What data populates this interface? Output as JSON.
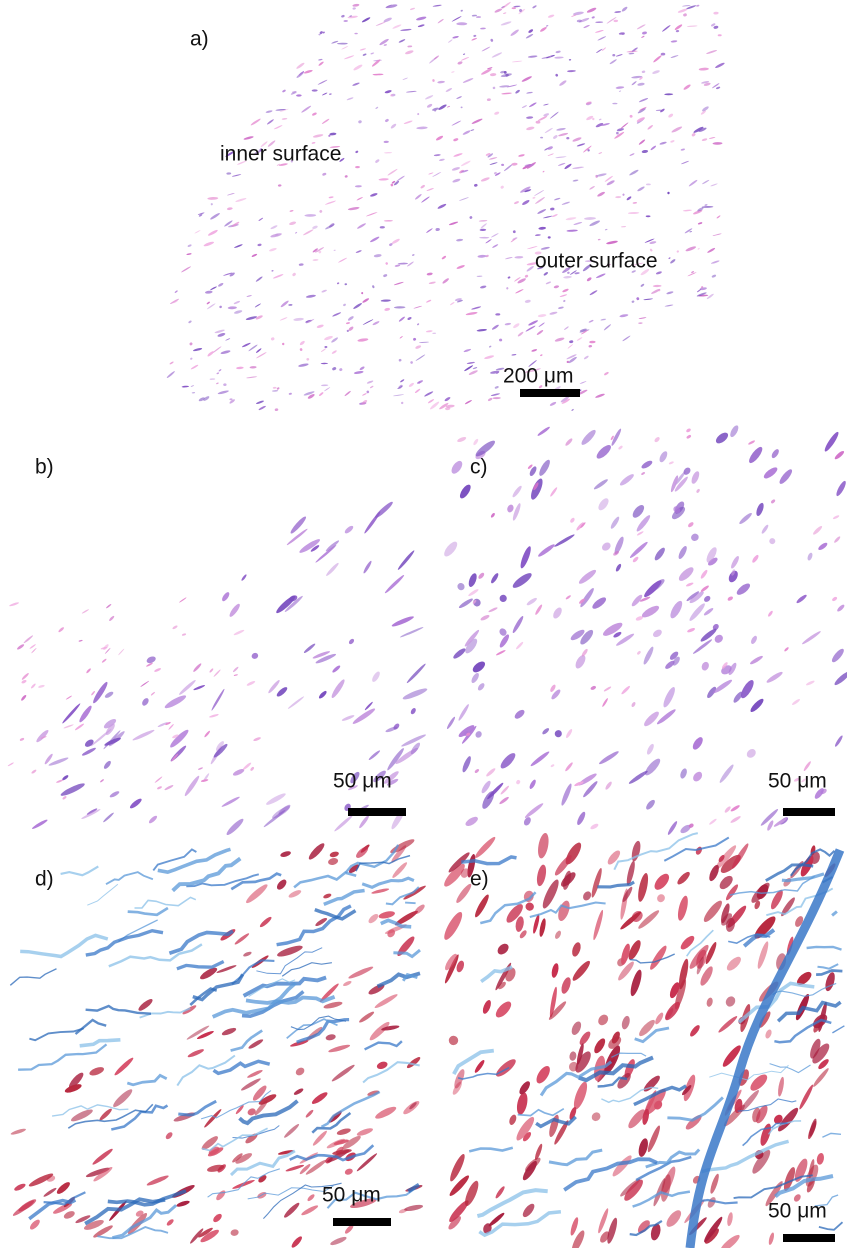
{
  "panels": [
    {
      "label": "a)",
      "scale_bar": "200 μm",
      "annotations": [
        "inner surface",
        "outer surface"
      ]
    },
    {
      "label": "b)",
      "scale_bar": "50 μm"
    },
    {
      "label": "c)",
      "scale_bar": "50 μm"
    },
    {
      "label": "d)",
      "scale_bar": "50 μm"
    },
    {
      "label": "e)",
      "scale_bar": "50 μm"
    }
  ]
}
